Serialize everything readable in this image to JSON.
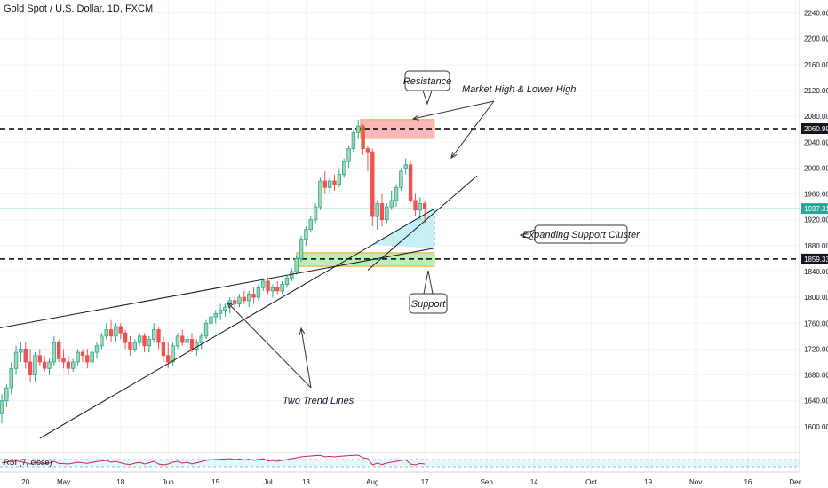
{
  "title": "Gold Spot / U.S. Dollar, 1D, FXCM",
  "rsi_label": "RSI (7, close)",
  "colors": {
    "bull": "#26a69a",
    "bull_fill": "#a5d6a7",
    "bear": "#ef5350",
    "resistance_zone": "#f7a1a1",
    "support_zone": "#a5e8a0",
    "price_line": "#26a69a",
    "rsi_line": "#d81b60",
    "rsi_fill": "#b2ebf2"
  },
  "chart_data": {
    "type": "candlestick",
    "instrument": "Gold Spot / U.S. Dollar",
    "interval": "1D",
    "source": "FXCM",
    "ylim": [
      1560,
      2260
    ],
    "y_ticks": [
      2240,
      2200,
      2160,
      2120,
      2080,
      2040,
      2000,
      1960,
      1920,
      1880,
      1840,
      1800,
      1760,
      1720,
      1680,
      1640,
      1600
    ],
    "y_tick_labels": [
      "2240.00",
      "2200.00",
      "2160.00",
      "2120.00",
      "2080.00",
      "2040.00",
      "2000.00",
      "1960.00",
      "1920.00",
      "1880.00",
      "1840.00",
      "1800.00",
      "1760.00",
      "1720.00",
      "1680.00",
      "1640.00",
      "1600.00"
    ],
    "x_ticks": [
      {
        "label": "20",
        "bar": 5
      },
      {
        "label": "May",
        "bar": 13
      },
      {
        "label": "18",
        "bar": 25
      },
      {
        "label": "Jun",
        "bar": 35
      },
      {
        "label": "15",
        "bar": 45
      },
      {
        "label": "Jul",
        "bar": 56
      },
      {
        "label": "13",
        "bar": 64
      },
      {
        "label": "Aug",
        "bar": 78
      },
      {
        "label": "17",
        "bar": 89
      },
      {
        "label": "Sep",
        "bar": 102
      },
      {
        "label": "14",
        "bar": 112
      },
      {
        "label": "Oct",
        "bar": 124
      },
      {
        "label": "19",
        "bar": 136
      },
      {
        "label": "Nov",
        "bar": 146
      },
      {
        "label": "16",
        "bar": 157
      },
      {
        "label": "Dec",
        "bar": 167
      }
    ],
    "bar_range": [
      0,
      169
    ],
    "candles": [
      [
        1620,
        1650,
        1605,
        1640
      ],
      [
        1640,
        1665,
        1630,
        1660
      ],
      [
        1660,
        1700,
        1650,
        1690
      ],
      [
        1690,
        1725,
        1680,
        1715
      ],
      [
        1715,
        1730,
        1700,
        1720
      ],
      [
        1720,
        1730,
        1690,
        1700
      ],
      [
        1700,
        1720,
        1670,
        1680
      ],
      [
        1680,
        1715,
        1670,
        1710
      ],
      [
        1710,
        1720,
        1695,
        1700
      ],
      [
        1700,
        1710,
        1685,
        1690
      ],
      [
        1690,
        1705,
        1680,
        1700
      ],
      [
        1700,
        1740,
        1695,
        1730
      ],
      [
        1730,
        1735,
        1700,
        1705
      ],
      [
        1705,
        1720,
        1690,
        1700
      ],
      [
        1700,
        1710,
        1680,
        1690
      ],
      [
        1690,
        1705,
        1685,
        1700
      ],
      [
        1700,
        1720,
        1695,
        1715
      ],
      [
        1715,
        1720,
        1700,
        1710
      ],
      [
        1710,
        1720,
        1690,
        1700
      ],
      [
        1700,
        1720,
        1695,
        1715
      ],
      [
        1715,
        1730,
        1705,
        1725
      ],
      [
        1725,
        1745,
        1720,
        1740
      ],
      [
        1740,
        1760,
        1735,
        1750
      ],
      [
        1750,
        1765,
        1730,
        1740
      ],
      [
        1740,
        1760,
        1730,
        1755
      ],
      [
        1755,
        1760,
        1735,
        1745
      ],
      [
        1745,
        1750,
        1720,
        1730
      ],
      [
        1730,
        1740,
        1710,
        1720
      ],
      [
        1720,
        1735,
        1715,
        1730
      ],
      [
        1730,
        1745,
        1725,
        1740
      ],
      [
        1740,
        1745,
        1715,
        1725
      ],
      [
        1725,
        1740,
        1715,
        1735
      ],
      [
        1735,
        1760,
        1730,
        1750
      ],
      [
        1750,
        1755,
        1720,
        1730
      ],
      [
        1730,
        1740,
        1700,
        1710
      ],
      [
        1710,
        1730,
        1690,
        1700
      ],
      [
        1700,
        1730,
        1695,
        1725
      ],
      [
        1725,
        1745,
        1720,
        1740
      ],
      [
        1740,
        1750,
        1725,
        1730
      ],
      [
        1730,
        1740,
        1715,
        1735
      ],
      [
        1735,
        1745,
        1715,
        1720
      ],
      [
        1720,
        1735,
        1710,
        1730
      ],
      [
        1730,
        1745,
        1720,
        1740
      ],
      [
        1740,
        1765,
        1735,
        1760
      ],
      [
        1760,
        1775,
        1750,
        1770
      ],
      [
        1770,
        1780,
        1760,
        1775
      ],
      [
        1775,
        1790,
        1765,
        1780
      ],
      [
        1780,
        1790,
        1770,
        1785
      ],
      [
        1785,
        1800,
        1775,
        1795
      ],
      [
        1795,
        1800,
        1780,
        1790
      ],
      [
        1790,
        1805,
        1785,
        1800
      ],
      [
        1800,
        1810,
        1790,
        1795
      ],
      [
        1795,
        1810,
        1785,
        1805
      ],
      [
        1805,
        1815,
        1790,
        1800
      ],
      [
        1800,
        1820,
        1795,
        1815
      ],
      [
        1815,
        1830,
        1810,
        1825
      ],
      [
        1825,
        1830,
        1805,
        1810
      ],
      [
        1810,
        1820,
        1800,
        1815
      ],
      [
        1815,
        1825,
        1805,
        1810
      ],
      [
        1810,
        1825,
        1805,
        1820
      ],
      [
        1820,
        1835,
        1815,
        1830
      ],
      [
        1830,
        1845,
        1825,
        1840
      ],
      [
        1840,
        1865,
        1835,
        1860
      ],
      [
        1860,
        1895,
        1855,
        1890
      ],
      [
        1890,
        1910,
        1880,
        1905
      ],
      [
        1905,
        1925,
        1900,
        1920
      ],
      [
        1920,
        1945,
        1915,
        1940
      ],
      [
        1940,
        1985,
        1935,
        1980
      ],
      [
        1980,
        1995,
        1960,
        1970
      ],
      [
        1970,
        1985,
        1960,
        1980
      ],
      [
        1980,
        1990,
        1965,
        1975
      ],
      [
        1975,
        2000,
        1970,
        1990
      ],
      [
        1990,
        2015,
        1985,
        2010
      ],
      [
        2010,
        2035,
        2000,
        2030
      ],
      [
        2030,
        2060,
        2025,
        2055
      ],
      [
        2055,
        2075,
        2045,
        2065
      ],
      [
        2065,
        2068,
        2020,
        2030
      ],
      [
        2030,
        2035,
        1995,
        2025
      ],
      [
        2025,
        2030,
        1910,
        1925
      ],
      [
        1925,
        1950,
        1905,
        1945
      ],
      [
        1945,
        1960,
        1910,
        1920
      ],
      [
        1920,
        1945,
        1915,
        1940
      ],
      [
        1940,
        1965,
        1935,
        1950
      ],
      [
        1950,
        1975,
        1940,
        1970
      ],
      [
        1970,
        2000,
        1965,
        1995
      ],
      [
        2000,
        2015,
        1990,
        2005
      ],
      [
        2005,
        2010,
        1945,
        1950
      ],
      [
        1950,
        1960,
        1925,
        1935
      ],
      [
        1935,
        1955,
        1920,
        1945
      ],
      [
        1945,
        1950,
        1915,
        1937.31
      ]
    ],
    "last_price": 1937.31,
    "last_price_label": "1937.31",
    "resistance_level": 2060.99,
    "resistance_label": "2060.99",
    "support_level": 1859.33,
    "support_label": "1859.33",
    "resistance_zone": {
      "from_bar": 75.5,
      "to_bar": 91,
      "low": 2046,
      "high": 2075
    },
    "support_zone": {
      "from_bar": 62,
      "to_bar": 91,
      "low": 1848,
      "high": 1869
    },
    "trend_lines": [
      {
        "from": [
          -1,
          1752
        ],
        "to": [
          91,
          1876
        ]
      },
      {
        "from": [
          8,
          1582
        ],
        "to": [
          91,
          1937
        ]
      },
      {
        "from": [
          77,
          1842
        ],
        "to": [
          100,
          1988
        ]
      }
    ],
    "annotations": [
      {
        "text": "Resistance",
        "callout": true
      },
      {
        "text": "Market High & Lower High",
        "callout": false
      },
      {
        "text": "Expanding Support Cluster",
        "callout": true
      },
      {
        "text": "Support",
        "callout": true
      },
      {
        "text": "Two Trend Lines",
        "callout": false
      }
    ],
    "rsi": {
      "period": 7,
      "values": [
        52,
        55,
        60,
        62,
        58,
        52,
        45,
        55,
        50,
        47,
        50,
        60,
        48,
        47,
        45,
        50,
        55,
        52,
        48,
        55,
        58,
        62,
        65,
        55,
        60,
        52,
        45,
        42,
        50,
        55,
        45,
        52,
        60,
        45,
        40,
        45,
        55,
        60,
        50,
        55,
        45,
        52,
        58,
        65,
        68,
        70,
        72,
        73,
        75,
        70,
        73,
        68,
        72,
        65,
        70,
        75,
        62,
        65,
        60,
        65,
        70,
        75,
        80,
        85,
        88,
        90,
        92,
        94,
        85,
        88,
        85,
        88,
        90,
        92,
        94,
        95,
        80,
        75,
        40,
        50,
        42,
        50,
        55,
        60,
        65,
        68,
        45,
        40,
        48,
        45
      ],
      "upper": 70,
      "lower": 30
    }
  }
}
